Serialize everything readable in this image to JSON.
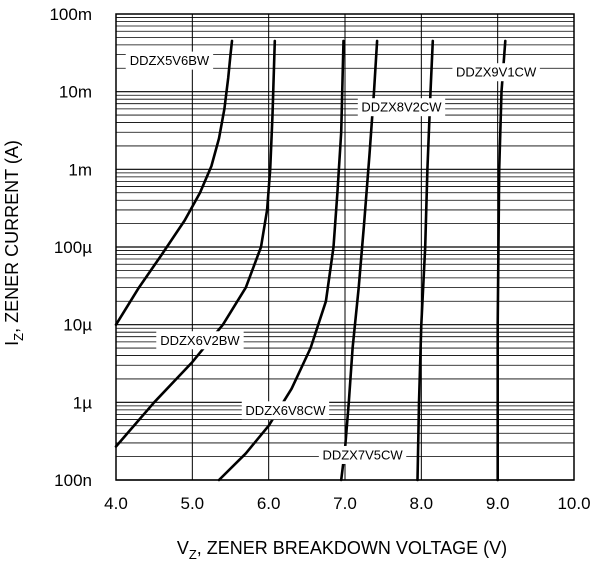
{
  "chart_data": {
    "type": "line",
    "title": "",
    "x_axis": {
      "label_main": "V",
      "label_sub": "Z",
      "label_rest": ", ZENER BREAKDOWN VOLTAGE (V)",
      "min": 4.0,
      "max": 10.0,
      "ticks": [
        4.0,
        5.0,
        6.0,
        7.0,
        8.0,
        9.0,
        10.0
      ],
      "tick_labels": [
        "4.0",
        "5.0",
        "6.0",
        "7.0",
        "8.0",
        "9.0",
        "10.0"
      ]
    },
    "y_axis": {
      "label_main": "I",
      "label_sub": "Z",
      "label_rest": ", ZENER CURRENT (A)",
      "scale": "log",
      "min": 1e-07,
      "max": 0.1,
      "ticks": [
        1e-07,
        1e-06,
        1e-05,
        0.0001,
        0.001,
        0.01,
        0.1
      ],
      "tick_labels": [
        "100n",
        "1µ",
        "10µ",
        "100µ",
        "1m",
        "10m",
        "100m"
      ]
    },
    "grid": true,
    "series": [
      {
        "name": "DDZX5V6BW",
        "points": [
          [
            4.0,
            1e-05
          ],
          [
            4.3,
            3e-05
          ],
          [
            4.6,
            8e-05
          ],
          [
            4.9,
            0.00022
          ],
          [
            5.1,
            0.0005
          ],
          [
            5.25,
            0.0011
          ],
          [
            5.35,
            0.0025
          ],
          [
            5.42,
            0.006
          ],
          [
            5.47,
            0.015
          ],
          [
            5.5,
            0.03
          ],
          [
            5.52,
            0.045
          ]
        ]
      },
      {
        "name": "DDZX6V2BW",
        "points": [
          [
            4.0,
            2.7e-07
          ],
          [
            4.5,
            1e-06
          ],
          [
            5.0,
            3.3e-06
          ],
          [
            5.4,
            1e-05
          ],
          [
            5.7,
            3e-05
          ],
          [
            5.9,
            0.0001
          ],
          [
            5.98,
            0.0003
          ],
          [
            6.02,
            0.001
          ],
          [
            6.05,
            0.005
          ],
          [
            6.08,
            0.045
          ]
        ]
      },
      {
        "name": "DDZX6V8CW",
        "points": [
          [
            5.35,
            1e-07
          ],
          [
            5.7,
            2.2e-07
          ],
          [
            6.0,
            5e-07
          ],
          [
            6.3,
            1.5e-06
          ],
          [
            6.55,
            5e-06
          ],
          [
            6.75,
            2e-05
          ],
          [
            6.85,
            0.0001
          ],
          [
            6.9,
            0.0005
          ],
          [
            6.95,
            0.003
          ],
          [
            6.98,
            0.045
          ]
        ]
      },
      {
        "name": "DDZX7V5CW",
        "points": [
          [
            6.95,
            1e-07
          ],
          [
            7.0,
            2.5e-07
          ],
          [
            7.05,
            1e-06
          ],
          [
            7.1,
            5e-06
          ],
          [
            7.18,
            3e-05
          ],
          [
            7.25,
            0.0002
          ],
          [
            7.32,
            0.0015
          ],
          [
            7.38,
            0.01
          ],
          [
            7.42,
            0.045
          ]
        ]
      },
      {
        "name": "DDZX8V2CW",
        "points": [
          [
            7.95,
            1e-07
          ],
          [
            7.97,
            1e-06
          ],
          [
            8.0,
            1e-05
          ],
          [
            8.05,
            0.0001
          ],
          [
            8.08,
            0.001
          ],
          [
            8.12,
            0.01
          ],
          [
            8.15,
            0.045
          ]
        ]
      },
      {
        "name": "DDZX9V1CW",
        "points": [
          [
            9.0,
            1e-07
          ],
          [
            9.0,
            1e-05
          ],
          [
            9.02,
            0.001
          ],
          [
            9.05,
            0.01
          ],
          [
            9.1,
            0.045
          ]
        ]
      }
    ],
    "curve_labels": [
      {
        "text": "DDZX5V6BW",
        "series": "DDZX5V6BW",
        "at": [
          4.7,
          0.0251
        ]
      },
      {
        "text": "DDZX6V2BW",
        "series": "DDZX6V2BW",
        "at": [
          5.1,
          6.3e-06
        ]
      },
      {
        "text": "DDZX6V8CW",
        "series": "DDZX6V8CW",
        "at": [
          6.22,
          7.9e-07
        ]
      },
      {
        "text": "DDZX7V5CW",
        "series": "DDZX7V5CW",
        "at": [
          7.23,
          2.1e-07
        ]
      },
      {
        "text": "DDZX8V2CW",
        "series": "DDZX8V2CW",
        "at": [
          7.74,
          0.00631
        ]
      },
      {
        "text": "DDZX9V1CW",
        "series": "DDZX9V1CW",
        "at": [
          8.98,
          0.0178
        ]
      }
    ]
  }
}
